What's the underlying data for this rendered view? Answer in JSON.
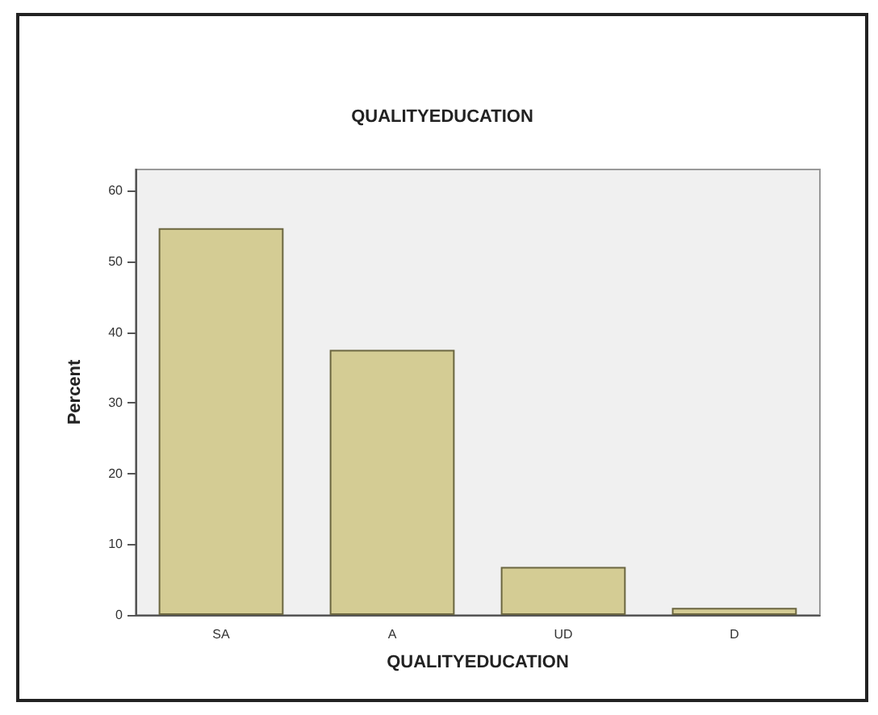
{
  "chart_data": {
    "type": "bar",
    "title": "QUALITYEDUCATION",
    "xlabel": "QUALITYEDUCATION",
    "ylabel": "Percent",
    "categories": [
      "SA",
      "A",
      "UD",
      "D"
    ],
    "values": [
      54.7,
      37.5,
      6.8,
      1.0
    ],
    "color": "#d4cc94",
    "ylim": [
      0,
      63
    ],
    "yticks": [
      0,
      10,
      20,
      30,
      40,
      50,
      60
    ],
    "grid": false
  }
}
